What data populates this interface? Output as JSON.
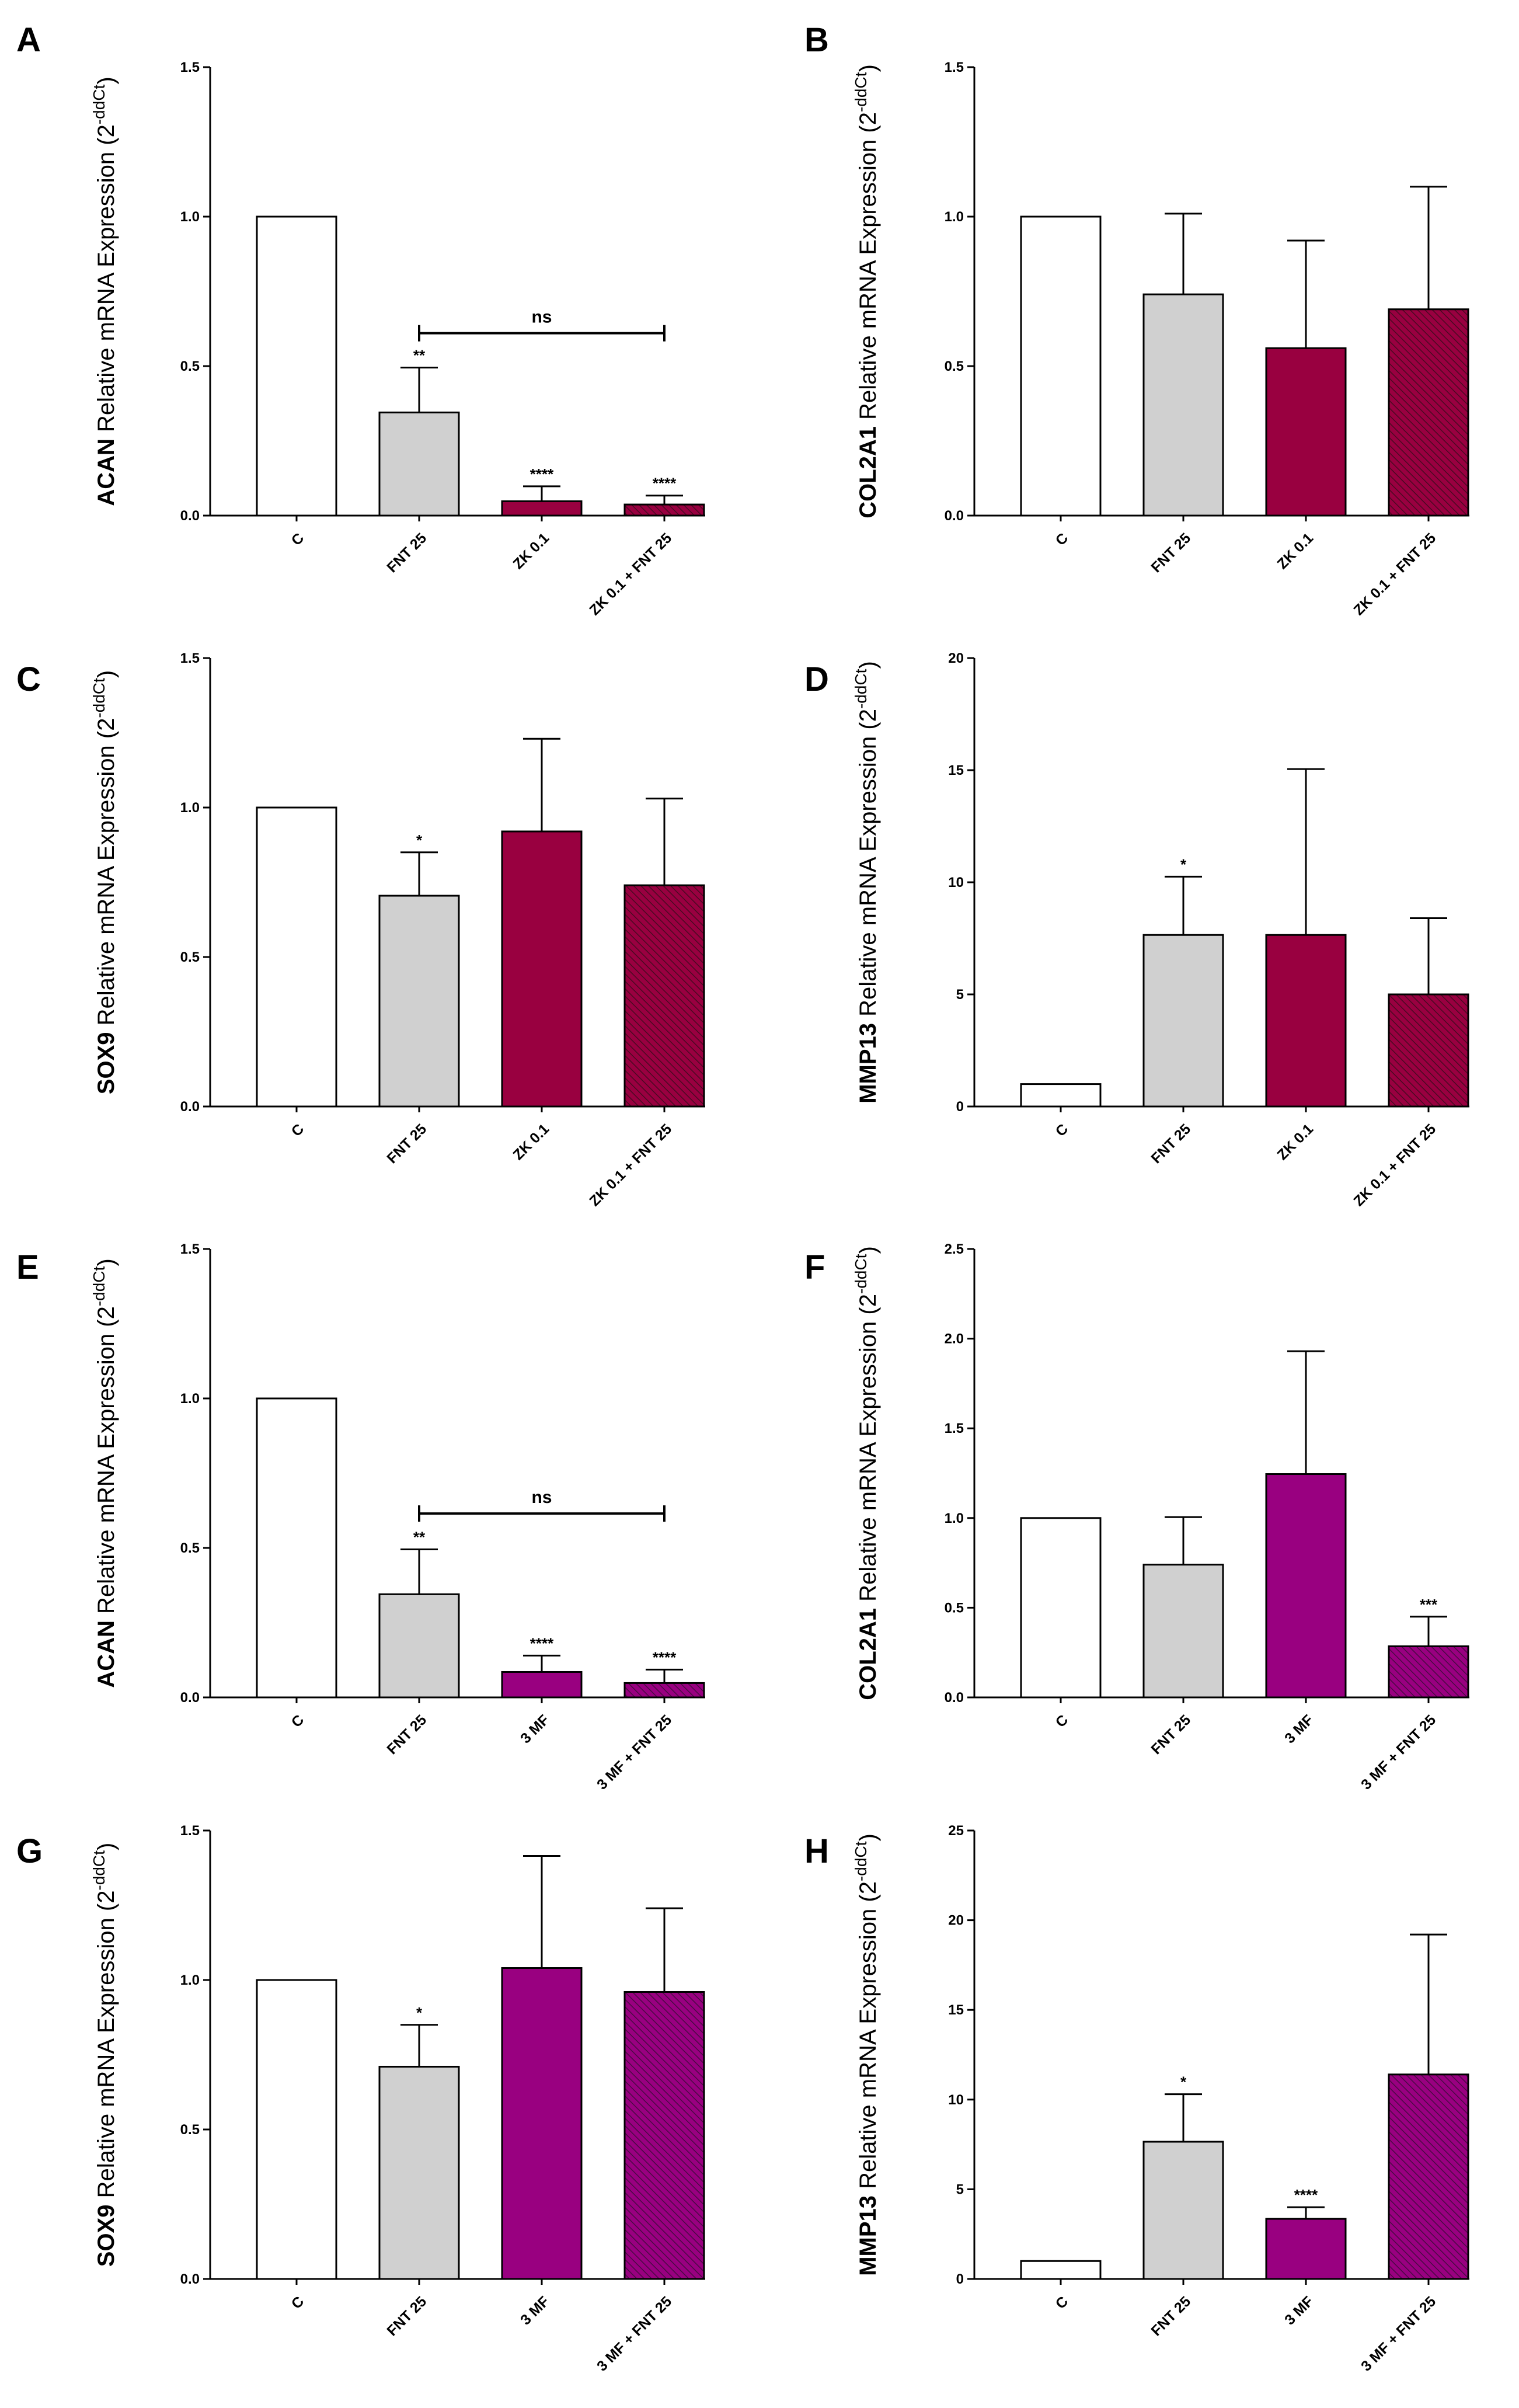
{
  "colors": {
    "control": "#ffffff",
    "fnt": "#d0d0d0",
    "zk": "#990040",
    "mf": "#990080",
    "axis": "#000000"
  },
  "chart_data": [
    {
      "panel": "A",
      "type": "bar",
      "gene": "ACAN",
      "ylabel_rest": " Relative mRNA Expression (2",
      "categories": [
        "C",
        "FNT 25",
        "ZK 0.1",
        "ZK 0.1 + FNT 25"
      ],
      "values": [
        1.0,
        0.345,
        0.048,
        0.037
      ],
      "errors": [
        0,
        0.15,
        0.05,
        0.03
      ],
      "significance": [
        "",
        "**",
        "****",
        "****"
      ],
      "ylim": [
        0,
        1.5
      ],
      "yticks": [
        "0.0",
        "0.5",
        "1.0",
        "1.5"
      ],
      "fills": [
        "control",
        "fnt",
        "zk",
        "zk-hatch"
      ],
      "bracket": {
        "from": 1,
        "to": 3,
        "y": 0.61,
        "label": "ns"
      }
    },
    {
      "panel": "B",
      "type": "bar",
      "gene": "COL2A1",
      "ylabel_rest": " Relative mRNA Expression (2",
      "categories": [
        "C",
        "FNT 25",
        "ZK 0.1",
        "ZK 0.1 + FNT 25"
      ],
      "values": [
        1.0,
        0.74,
        0.56,
        0.69
      ],
      "errors": [
        0,
        0.27,
        0.36,
        0.41
      ],
      "significance": [
        "",
        "",
        "",
        ""
      ],
      "ylim": [
        0,
        1.5
      ],
      "yticks": [
        "0.0",
        "0.5",
        "1.0",
        "1.5"
      ],
      "fills": [
        "control",
        "fnt",
        "zk",
        "zk-hatch"
      ]
    },
    {
      "panel": "C",
      "type": "bar",
      "gene": "SOX9",
      "ylabel_rest": " Relative mRNA Expression (2",
      "categories": [
        "C",
        "FNT 25",
        "ZK 0.1",
        "ZK 0.1 + FNT 25"
      ],
      "values": [
        1.0,
        0.705,
        0.92,
        0.74
      ],
      "errors": [
        0,
        0.145,
        0.31,
        0.29
      ],
      "significance": [
        "",
        "*",
        "",
        ""
      ],
      "ylim": [
        0,
        1.5
      ],
      "yticks": [
        "0.0",
        "0.5",
        "1.0",
        "1.5"
      ],
      "fills": [
        "control",
        "fnt",
        "zk",
        "zk-hatch"
      ]
    },
    {
      "panel": "D",
      "type": "bar",
      "gene": "MMP13",
      "ylabel_rest": " Relative mRNA Expression (2",
      "categories": [
        "C",
        "FNT 25",
        "ZK 0.1",
        "ZK 0.1 + FNT 25"
      ],
      "values": [
        1.0,
        7.65,
        7.65,
        5.0
      ],
      "errors": [
        0,
        2.6,
        7.4,
        3.4
      ],
      "significance": [
        "",
        "*",
        "",
        ""
      ],
      "ylim": [
        0,
        20
      ],
      "yticks": [
        "0",
        "5",
        "10",
        "15",
        "20"
      ],
      "fills": [
        "control",
        "fnt",
        "zk",
        "zk-hatch"
      ]
    },
    {
      "panel": "E",
      "type": "bar",
      "gene": "ACAN",
      "ylabel_rest": " Relative mRNA Expression (2",
      "categories": [
        "C",
        "FNT 25",
        "3 MF",
        "3 MF + FNT 25"
      ],
      "values": [
        1.0,
        0.345,
        0.085,
        0.048
      ],
      "errors": [
        0,
        0.15,
        0.055,
        0.045
      ],
      "significance": [
        "",
        "**",
        "****",
        "****"
      ],
      "ylim": [
        0,
        1.5
      ],
      "yticks": [
        "0.0",
        "0.5",
        "1.0",
        "1.5"
      ],
      "fills": [
        "control",
        "fnt",
        "mf",
        "mf-hatch"
      ],
      "bracket": {
        "from": 1,
        "to": 3,
        "y": 0.615,
        "label": "ns"
      }
    },
    {
      "panel": "F",
      "type": "bar",
      "gene": "COL2A1",
      "ylabel_rest": " Relative mRNA Expression (2",
      "categories": [
        "C",
        "FNT 25",
        "3 MF",
        "3 MF + FNT 25"
      ],
      "values": [
        1.0,
        0.74,
        1.245,
        0.285
      ],
      "errors": [
        0,
        0.265,
        0.685,
        0.165
      ],
      "significance": [
        "",
        "",
        "",
        "***"
      ],
      "ylim": [
        0,
        2.5
      ],
      "yticks": [
        "0.0",
        "0.5",
        "1.0",
        "1.5",
        "2.0",
        "2.5"
      ],
      "fills": [
        "control",
        "fnt",
        "mf",
        "mf-hatch"
      ]
    },
    {
      "panel": "G",
      "type": "bar",
      "gene": "SOX9",
      "ylabel_rest": " Relative mRNA Expression (2",
      "categories": [
        "C",
        "FNT 25",
        "3 MF",
        "3 MF + FNT 25"
      ],
      "values": [
        1.0,
        0.71,
        1.04,
        0.96
      ],
      "errors": [
        0,
        0.14,
        0.375,
        0.28
      ],
      "significance": [
        "",
        "*",
        "",
        ""
      ],
      "ylim": [
        0,
        1.5
      ],
      "yticks": [
        "0.0",
        "0.5",
        "1.0",
        "1.5"
      ],
      "fills": [
        "control",
        "fnt",
        "mf",
        "mf-hatch"
      ]
    },
    {
      "panel": "H",
      "type": "bar",
      "gene": "MMP13",
      "ylabel_rest": " Relative mRNA Expression (2",
      "categories": [
        "C",
        "FNT 25",
        "3 MF",
        "3 MF + FNT 25"
      ],
      "values": [
        1.0,
        7.65,
        3.35,
        11.4
      ],
      "errors": [
        0,
        2.65,
        0.65,
        7.8
      ],
      "significance": [
        "",
        "*",
        "****",
        ""
      ],
      "ylim": [
        0,
        25
      ],
      "yticks": [
        "0",
        "5",
        "10",
        "15",
        "20",
        "25"
      ],
      "fills": [
        "control",
        "fnt",
        "mf",
        "mf-hatch"
      ]
    }
  ],
  "ylabel_superscript": "-ddCt",
  "ylabel_close": ")"
}
